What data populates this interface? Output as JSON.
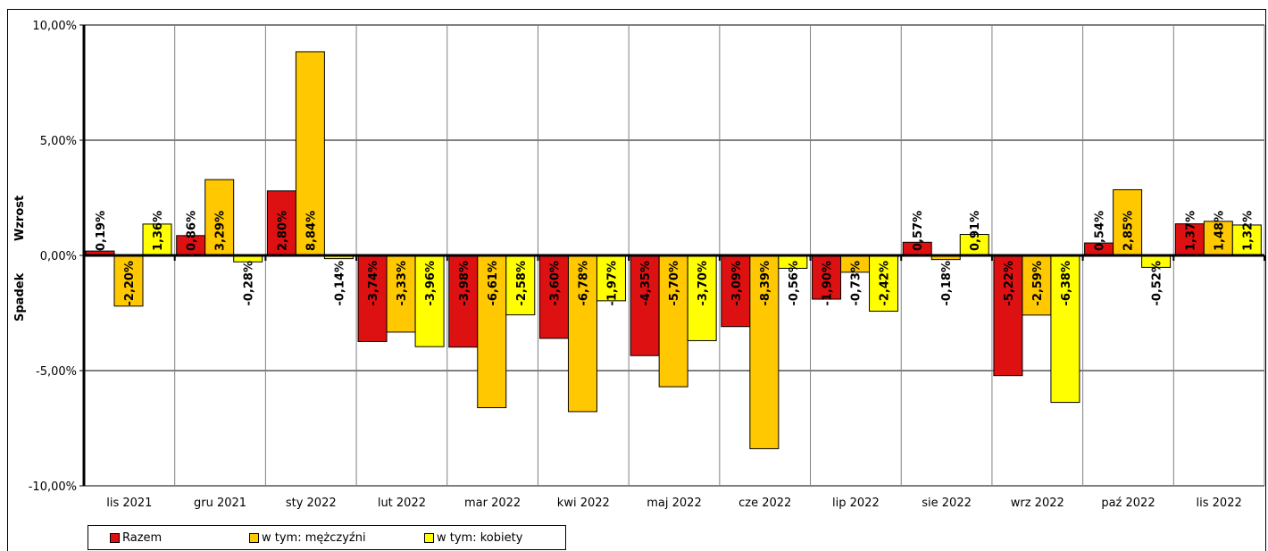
{
  "chart_data": {
    "type": "bar",
    "categories": [
      "lis 2021",
      "gru 2021",
      "sty 2022",
      "lut 2022",
      "mar 2022",
      "kwi 2022",
      "maj 2022",
      "cze 2022",
      "lip 2022",
      "sie 2022",
      "wrz 2022",
      "paź 2022",
      "lis 2022"
    ],
    "series": [
      {
        "name": "Razem",
        "color": "#dd1111",
        "values": [
          0.19,
          0.86,
          2.8,
          -3.74,
          -3.98,
          -3.6,
          -4.35,
          -3.09,
          -1.9,
          0.57,
          -5.22,
          0.54,
          1.37
        ],
        "labels": [
          "0,19%",
          "0,86%",
          "2,80%",
          "-3,74%",
          "-3,98%",
          "-3,60%",
          "-4,35%",
          "-3,09%",
          "-1,90%",
          "0,57%",
          "-5,22%",
          "0,54%",
          "1,37%"
        ]
      },
      {
        "name": "w tym: mężczyźni",
        "color": "#ffc800",
        "values": [
          -2.2,
          3.29,
          8.84,
          -3.33,
          -6.61,
          -6.78,
          -5.7,
          -8.39,
          -0.73,
          -0.18,
          -2.59,
          2.85,
          1.48
        ],
        "labels": [
          "-2,20%",
          "3,29%",
          "8,84%",
          "-3,33%",
          "-6,61%",
          "-6,78%",
          "-5,70%",
          "-8,39%",
          "-0,73%",
          "-0,18%",
          "-2,59%",
          "2,85%",
          "1,48%"
        ]
      },
      {
        "name": "w tym: kobiety",
        "color": "#ffff00",
        "values": [
          1.36,
          -0.28,
          -0.14,
          -3.96,
          -2.58,
          -1.97,
          -3.7,
          -0.56,
          -2.42,
          0.91,
          -6.38,
          -0.52,
          1.32
        ],
        "labels": [
          "1,36%",
          "-0,28%",
          "-0,14%",
          "-3,96%",
          "-2,58%",
          "-1,97%",
          "-3,70%",
          "-0,56%",
          "-2,42%",
          "0,91%",
          "-6,38%",
          "-0,52%",
          "1,32%"
        ]
      }
    ],
    "yticks": [
      10,
      5,
      0,
      -5,
      -10
    ],
    "ytick_labels": [
      "10,00%",
      "5,00%",
      "0,00%",
      "-5,00%",
      "-10,00%"
    ],
    "ylim": [
      -10,
      10
    ],
    "ylabel_pos": "Wzrost",
    "ylabel_neg": "Spadek",
    "grid": true,
    "legend_position": "bottom-left"
  }
}
